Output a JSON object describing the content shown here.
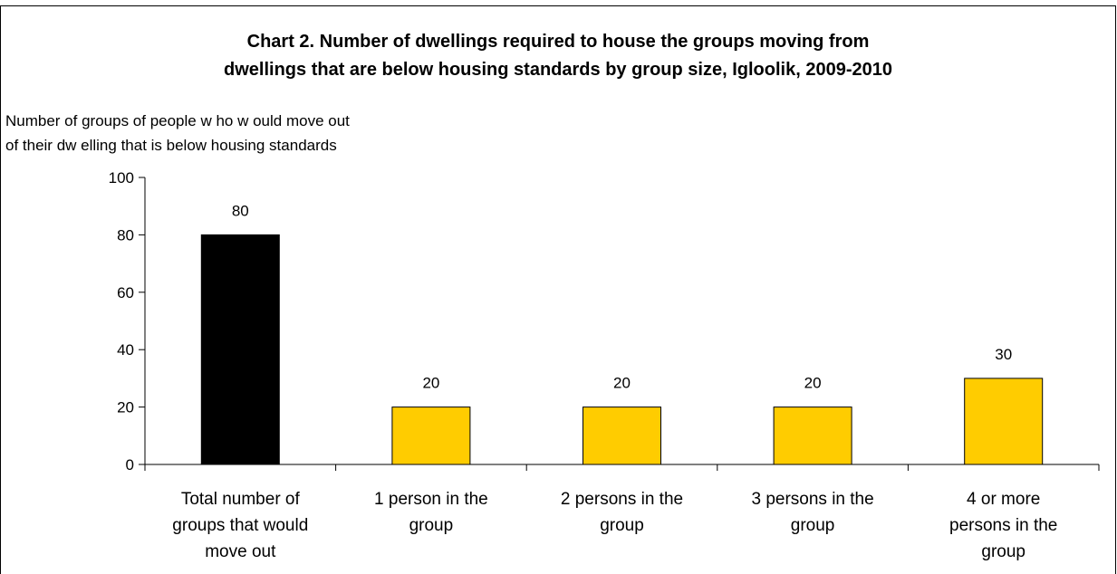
{
  "chart_data": {
    "type": "bar",
    "title": "Chart 2. Number of dwellings required to house the groups moving from dwellings that are below housing standards by group size, Igloolik, 2009-2010",
    "title_lines": [
      "Chart 2. Number of dwellings required to house the groups moving from",
      "dwellings that are below housing standards by group size, Igloolik, 2009-2010"
    ],
    "ylabel": "Number of groups of people w ho w ould move out of their dw elling that is below housing standards",
    "ylabel_lines": [
      "Number of groups of people w ho w ould move out",
      "of their dw elling that is below housing standards"
    ],
    "xlabel": "",
    "categories": [
      "Total number of groups that would move out",
      "1 person in the group",
      "2 persons in the group",
      "3 persons in the group",
      "4 or more persons in the group"
    ],
    "category_lines": [
      [
        "Total number of",
        "groups that would",
        "move out"
      ],
      [
        "1 person in the",
        "group"
      ],
      [
        "2 persons in the",
        "group"
      ],
      [
        "3 persons in the",
        "group"
      ],
      [
        "4 or more",
        "persons in the",
        "group"
      ]
    ],
    "values": [
      80,
      20,
      20,
      20,
      30
    ],
    "bar_colors": [
      "#000000",
      "#FFCC00",
      "#FFCC00",
      "#FFCC00",
      "#FFCC00"
    ],
    "ylim": [
      0,
      100
    ],
    "yticks": [
      0,
      20,
      40,
      60,
      80,
      100
    ],
    "grid": false,
    "legend": "none"
  }
}
